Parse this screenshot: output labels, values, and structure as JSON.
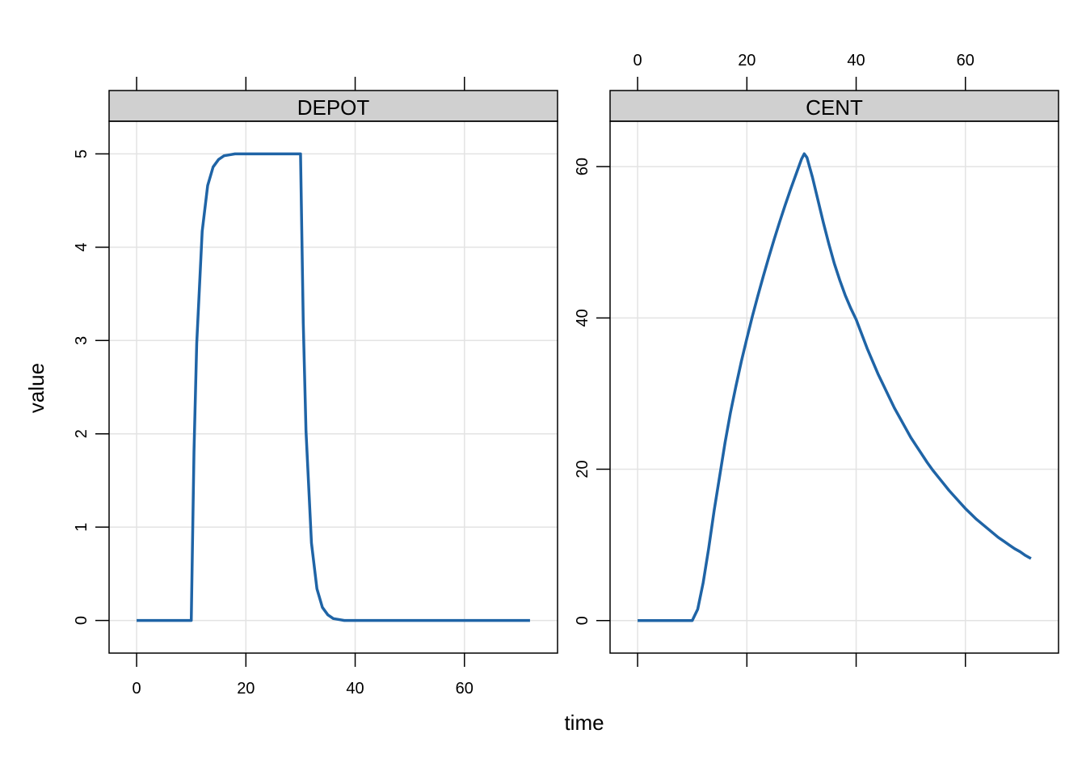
{
  "axis_labels": {
    "x": "time",
    "y": "value"
  },
  "chart_data": [
    {
      "type": "line",
      "title": "DEPOT",
      "x": [
        0,
        10,
        10.5,
        11,
        12,
        13,
        14,
        15,
        16,
        17,
        18,
        30,
        30.5,
        31,
        32,
        33,
        34,
        35,
        36,
        37,
        38,
        72
      ],
      "series": [
        {
          "color": "#1f64a6",
          "values": [
            0,
            0,
            1.81,
            2.97,
            4.17,
            4.66,
            4.86,
            4.94,
            4.98,
            4.99,
            5,
            5,
            3.19,
            2.03,
            0.83,
            0.34,
            0.14,
            0.06,
            0.02,
            0.01,
            0,
            0
          ]
        }
      ],
      "xlim": [
        -5.04,
        77.04
      ],
      "ylim": [
        -0.35,
        5.35
      ],
      "xticks": [
        0,
        20,
        40,
        60
      ],
      "yticks": [
        0,
        1,
        2,
        3,
        4,
        5
      ],
      "grid": true
    },
    {
      "type": "line",
      "title": "CENT",
      "x": [
        0,
        10,
        11,
        12,
        13,
        14,
        15,
        16,
        17,
        18,
        19,
        20,
        21,
        22,
        23,
        24,
        25,
        26,
        27,
        28,
        29,
        30,
        30.5,
        31,
        32,
        33,
        34,
        35,
        36,
        37,
        38,
        39,
        40,
        41,
        42,
        43,
        44,
        45,
        46,
        47,
        48,
        49,
        50,
        51,
        52,
        53,
        54,
        55,
        56,
        57,
        58,
        59,
        60,
        61,
        62,
        63,
        64,
        65,
        66,
        67,
        68,
        69,
        70,
        71,
        72
      ],
      "series": [
        {
          "color": "#1f64a6",
          "values": [
            0,
            0,
            1.5,
            5,
            9.5,
            14.5,
            19,
            23.5,
            27.5,
            31,
            34.3,
            37.3,
            40.2,
            42.9,
            45.5,
            48,
            50.4,
            52.7,
            54.9,
            57,
            59,
            61,
            61.7,
            61.2,
            58.6,
            55.6,
            52.6,
            49.8,
            47.2,
            45,
            43,
            41.3,
            39.8,
            37.9,
            36,
            34.3,
            32.6,
            31.1,
            29.6,
            28.1,
            26.8,
            25.5,
            24.2,
            23.1,
            22,
            20.9,
            19.9,
            19,
            18.1,
            17.2,
            16.4,
            15.6,
            14.8,
            14.1,
            13.4,
            12.8,
            12.2,
            11.6,
            11,
            10.5,
            10,
            9.5,
            9.1,
            8.6,
            8.2
          ]
        }
      ],
      "xlim": [
        -5.04,
        77.04
      ],
      "ylim": [
        -4.3,
        66.0
      ],
      "xticks": [
        0,
        20,
        40,
        60
      ],
      "yticks": [
        0,
        20,
        40,
        60
      ],
      "grid": true
    }
  ]
}
